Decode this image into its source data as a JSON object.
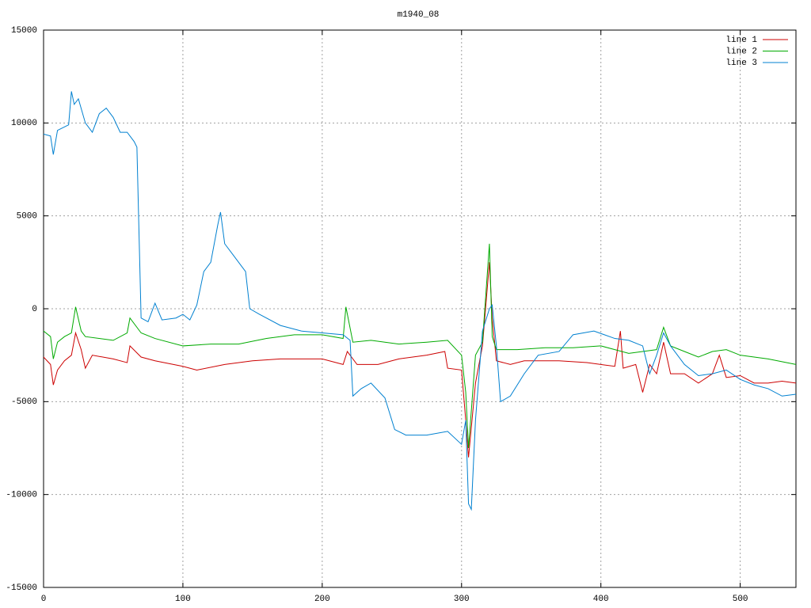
{
  "chart_data": {
    "type": "line",
    "title": "m1940_08",
    "xlim": [
      0,
      540
    ],
    "ylim": [
      -15000,
      15000
    ],
    "xticks": [
      0,
      100,
      200,
      300,
      400,
      500
    ],
    "yticks": [
      -15000,
      -10000,
      -5000,
      0,
      5000,
      10000,
      15000
    ],
    "grid": true,
    "legend": "top-right",
    "series": [
      {
        "name": "line 1",
        "color": "#cc0000",
        "x": [
          0,
          5,
          7,
          10,
          15,
          20,
          23,
          27,
          30,
          35,
          50,
          60,
          62,
          70,
          80,
          100,
          110,
          130,
          150,
          170,
          200,
          215,
          218,
          225,
          240,
          255,
          275,
          288,
          290,
          300,
          303,
          305,
          310,
          315,
          320,
          322,
          325,
          335,
          345,
          370,
          390,
          410,
          414,
          416,
          425,
          430,
          435,
          440,
          445,
          450,
          460,
          470,
          480,
          485,
          490,
          500,
          510,
          520,
          530,
          540
        ],
        "values": [
          -2600,
          -3000,
          -4100,
          -3300,
          -2800,
          -2500,
          -1300,
          -2200,
          -3200,
          -2500,
          -2700,
          -2900,
          -2000,
          -2600,
          -2800,
          -3100,
          -3300,
          -3000,
          -2800,
          -2700,
          -2700,
          -3000,
          -2300,
          -3000,
          -3000,
          -2700,
          -2500,
          -2300,
          -3200,
          -3300,
          -6000,
          -8000,
          -4000,
          -2000,
          2500,
          -500,
          -2800,
          -3000,
          -2800,
          -2800,
          -2900,
          -3100,
          -1200,
          -3200,
          -3000,
          -4500,
          -3000,
          -3500,
          -1800,
          -3500,
          -3500,
          -4000,
          -3500,
          -2500,
          -3700,
          -3600,
          -4000,
          -4000,
          -3900,
          -4000
        ]
      },
      {
        "name": "line 2",
        "color": "#00aa00",
        "x": [
          0,
          5,
          7,
          10,
          15,
          20,
          23,
          27,
          30,
          50,
          60,
          62,
          70,
          80,
          100,
          120,
          140,
          160,
          180,
          200,
          215,
          217,
          222,
          235,
          255,
          275,
          290,
          300,
          303,
          305,
          310,
          315,
          320,
          322,
          325,
          340,
          360,
          380,
          400,
          410,
          420,
          430,
          440,
          445,
          450,
          460,
          470,
          480,
          490,
          500,
          520,
          540
        ],
        "values": [
          -1200,
          -1500,
          -2700,
          -1800,
          -1500,
          -1300,
          100,
          -1200,
          -1500,
          -1700,
          -1300,
          -500,
          -1300,
          -1600,
          -2000,
          -1900,
          -1900,
          -1600,
          -1400,
          -1400,
          -1600,
          100,
          -1800,
          -1700,
          -1900,
          -1800,
          -1700,
          -2500,
          -4500,
          -7500,
          -2500,
          -1800,
          3500,
          -1500,
          -2200,
          -2200,
          -2100,
          -2100,
          -2000,
          -2200,
          -2400,
          -2300,
          -2200,
          -1000,
          -2000,
          -2300,
          -2600,
          -2300,
          -2200,
          -2500,
          -2700,
          -3000
        ]
      },
      {
        "name": "line 3",
        "color": "#0080d0",
        "x": [
          0,
          5,
          7,
          10,
          18,
          20,
          22,
          25,
          30,
          35,
          40,
          45,
          50,
          55,
          60,
          65,
          67,
          70,
          75,
          80,
          85,
          95,
          100,
          105,
          110,
          115,
          120,
          125,
          127,
          130,
          135,
          145,
          148,
          155,
          170,
          185,
          200,
          215,
          220,
          222,
          228,
          235,
          245,
          252,
          260,
          275,
          290,
          300,
          303,
          305,
          307,
          310,
          315,
          320,
          322,
          325,
          328,
          335,
          345,
          355,
          370,
          380,
          395,
          410,
          420,
          430,
          435,
          440,
          445,
          450,
          460,
          470,
          480,
          490,
          500,
          510,
          520,
          530,
          540
        ],
        "values": [
          9400,
          9300,
          8300,
          9600,
          9900,
          11700,
          11000,
          11300,
          10000,
          9500,
          10500,
          10800,
          10300,
          9500,
          9500,
          9000,
          8700,
          -500,
          -700,
          300,
          -600,
          -500,
          -300,
          -600,
          200,
          2000,
          2500,
          4500,
          5200,
          3500,
          3000,
          2000,
          0,
          -300,
          -900,
          -1200,
          -1300,
          -1400,
          -1700,
          -4700,
          -4300,
          -4000,
          -4800,
          -6500,
          -6800,
          -6800,
          -6600,
          -7300,
          -6000,
          -10500,
          -10800,
          -6000,
          -1200,
          0,
          200,
          -2000,
          -5000,
          -4700,
          -3500,
          -2500,
          -2300,
          -1400,
          -1200,
          -1600,
          -1700,
          -2000,
          -3500,
          -2500,
          -1300,
          -2000,
          -3000,
          -3600,
          -3500,
          -3300,
          -3800,
          -4100,
          -4300,
          -4700,
          -4600
        ]
      }
    ]
  }
}
